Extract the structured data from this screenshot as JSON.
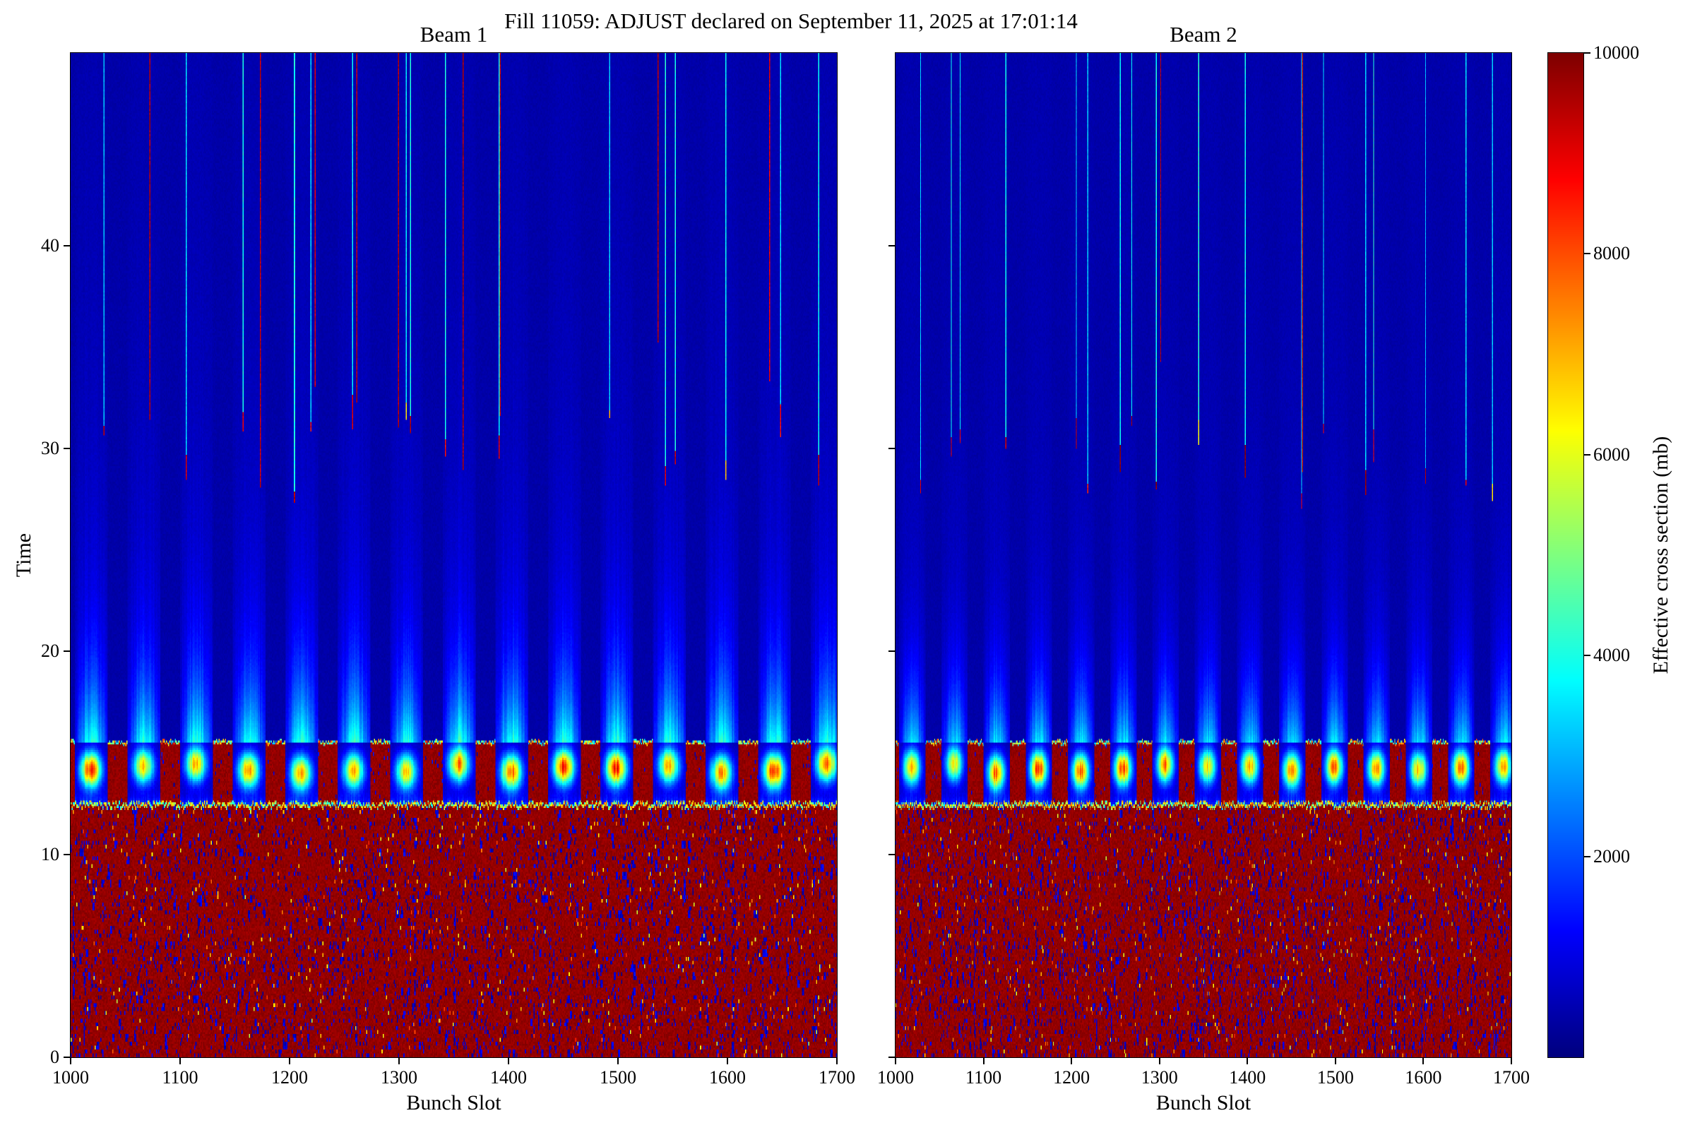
{
  "figure": {
    "background_color": "#ffffff"
  },
  "chart_data": {
    "type": "heatmap",
    "suptitle": "Fill 11059: ADJUST declared on September 11, 2025 at 17:01:14",
    "colormap": "jet",
    "panels": [
      {
        "title": "Beam 1",
        "xlabel": "Bunch Slot",
        "ylabel": "Time",
        "xlim": [
          1000,
          1700
        ],
        "ylim": [
          0,
          49.5
        ],
        "xticks": [
          1000,
          1100,
          1200,
          1300,
          1400,
          1500,
          1600,
          1700
        ],
        "yticks": [
          0,
          10,
          20,
          30,
          40
        ],
        "seed": 11059,
        "style": {
          "stripe_amp": 0.105,
          "stripe_fade": 6,
          "stripe_amp2": 0.035,
          "stripe_fade2": 25,
          "plume_amp": 0.3,
          "plume_fade": 2.8,
          "red_line_prob": 0.55,
          "cyan_line_prob": 0.8
        }
      },
      {
        "title": "Beam 2",
        "xlabel": "Bunch Slot",
        "ylabel": "",
        "xlim": [
          1000,
          1700
        ],
        "ylim": [
          0,
          49.5
        ],
        "xticks": [
          1000,
          1100,
          1200,
          1300,
          1400,
          1500,
          1600,
          1700
        ],
        "yticks": [
          0,
          10,
          20,
          30,
          40
        ],
        "seed": 22118,
        "style": {
          "stripe_amp": 0.08,
          "stripe_fade": 4.5,
          "stripe_amp2": 0.018,
          "stripe_fade2": 35,
          "plume_amp": 0.27,
          "plume_fade": 2.6,
          "red_line_prob": 0.45,
          "cyan_line_prob": 0.75
        }
      }
    ],
    "colorbar": {
      "label": "Effective cross section (mb)",
      "ticks": [
        2000,
        4000,
        6000,
        8000,
        10000
      ],
      "vmin": 0,
      "vmax": 10000
    },
    "pattern": {
      "description": "Per-bunch effective cross section vs time for LHC fill 11059. Bottom region (time 0 to ~12.4) is saturated at the colormap maximum (~10000 mb) with sparse low-value dark-blue speckles and occasional yellow dots. A thin bright cyan/yellow transition line crosses the full width at time ~12.4. Between ~12.4 and ~15.5 saturated red blocks (gaps between bunch trains) alternate with dark segments containing bright yellow-orange hotspots centred near time ~14.2. Above ~15.5 the field is dark blue with per-train light-blue stripes that fade with increasing time, plus sparse single-slot vertical drip lines from the top of the plot: some at the maximum (red) reaching down to time ~27-36, others cyan (~3000 mb) ending near time ~27-31 with short red/yellow tips.",
      "saturated_region_top_time": 12.35,
      "band_top_time": 15.5,
      "train_period_slots": 48,
      "train_length_slots": 32,
      "first_train_slot": 1004,
      "hotspot_time": 14.2,
      "hotspot_value_mb": [
        5500,
        8800
      ],
      "saturated_value_mb": 10000,
      "background_value_mb": 400,
      "stripe_value_mb": 1500,
      "drip_line_values_mb": {
        "red": 9000,
        "cyan": 3200,
        "tip": 8800
      },
      "base_level_frac": 0.04
    }
  }
}
